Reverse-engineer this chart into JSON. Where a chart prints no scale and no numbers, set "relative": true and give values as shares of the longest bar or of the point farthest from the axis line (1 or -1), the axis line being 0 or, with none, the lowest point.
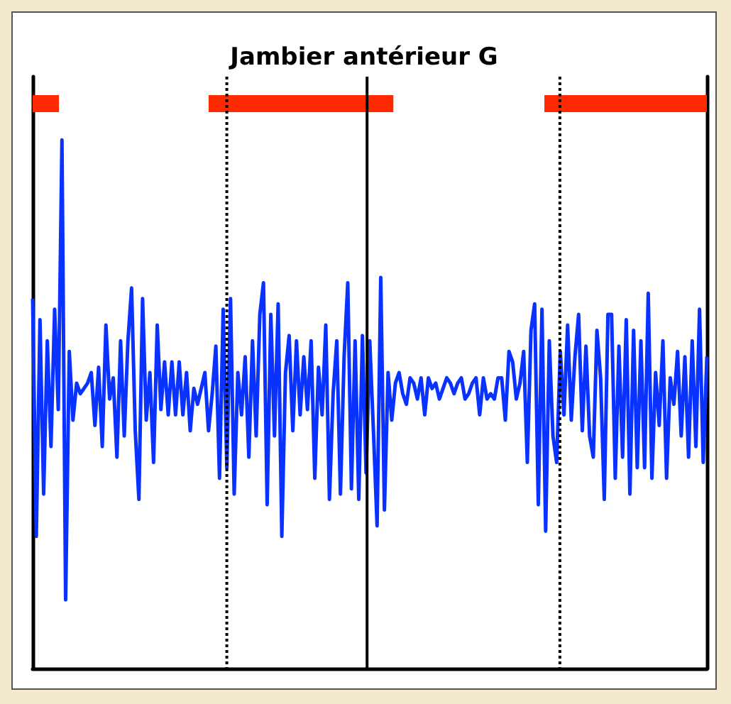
{
  "chart_data": {
    "type": "line",
    "title": "Jambier antérieur G",
    "relative": true,
    "color": "#0a32ff",
    "line_style": "solid",
    "grid": false,
    "categories": [
      null,
      null,
      null,
      null,
      null,
      null,
      null,
      null,
      null,
      null,
      null,
      null,
      null,
      null,
      null,
      null,
      null,
      null,
      null,
      null,
      null,
      null,
      null,
      null,
      null,
      null,
      null,
      null,
      null,
      null,
      null,
      null,
      null,
      null,
      null,
      null,
      null,
      null,
      null,
      null,
      null,
      null,
      null,
      null,
      null,
      null,
      null,
      null,
      null,
      null,
      null,
      null,
      null,
      null,
      null,
      null,
      null,
      null,
      null,
      null,
      null,
      null,
      null,
      null,
      null,
      null,
      null,
      null,
      null,
      null,
      null,
      null,
      null,
      null,
      null,
      null,
      null,
      null,
      null,
      null,
      null,
      null,
      null,
      null,
      null,
      null,
      null,
      null,
      null,
      null,
      null,
      null,
      null,
      null,
      null,
      null,
      null,
      null,
      null,
      null,
      null,
      null,
      null,
      null,
      null,
      null,
      null,
      null,
      null,
      null,
      null,
      null,
      null,
      null,
      null,
      null,
      null,
      null,
      null,
      null,
      null,
      null,
      null,
      null,
      null,
      null,
      null,
      null,
      null,
      null,
      null,
      null,
      null,
      null,
      null,
      null,
      null,
      null,
      null,
      null,
      null,
      null,
      null,
      null,
      null,
      null,
      null,
      null,
      null,
      null,
      null,
      null,
      null,
      null,
      null,
      null,
      null,
      null,
      null,
      null,
      null,
      null,
      null,
      null,
      null,
      null,
      null,
      null,
      null,
      null,
      null,
      null,
      null,
      null,
      null,
      null,
      null,
      null,
      null,
      null,
      null,
      null,
      null,
      null,
      null
    ],
    "values": [
      0.7,
      0.25,
      0.66,
      0.33,
      0.62,
      0.42,
      0.68,
      0.49,
      1,
      0.13,
      0.6,
      0.47,
      0.54,
      0.52,
      0.53,
      0.54,
      0.56,
      0.46,
      0.57,
      0.42,
      0.65,
      0.51,
      0.55,
      0.4,
      0.62,
      0.44,
      0.62,
      0.72,
      0.45,
      0.32,
      0.7,
      0.47,
      0.56,
      0.39,
      0.65,
      0.49,
      0.58,
      0.48,
      0.58,
      0.48,
      0.58,
      0.48,
      0.56,
      0.45,
      0.53,
      0.5,
      0.53,
      0.56,
      0.45,
      0.52,
      0.61,
      0.36,
      0.68,
      0.38,
      0.7,
      0.33,
      0.56,
      0.48,
      0.59,
      0.4,
      0.62,
      0.44,
      0.67,
      0.73,
      0.31,
      0.67,
      0.44,
      0.69,
      0.25,
      0.56,
      0.63,
      0.45,
      0.62,
      0.48,
      0.59,
      0.49,
      0.62,
      0.36,
      0.57,
      0.48,
      0.65,
      0.32,
      0.52,
      0.62,
      0.33,
      0.59,
      0.73,
      0.34,
      0.62,
      0.32,
      0.63,
      0.37,
      0.62,
      0.45,
      0.27,
      0.74,
      0.3,
      0.56,
      0.47,
      0.54,
      0.56,
      0.52,
      0.5,
      0.55,
      0.54,
      0.51,
      0.55,
      0.48,
      0.55,
      0.53,
      0.54,
      0.51,
      0.53,
      0.55,
      0.54,
      0.52,
      0.54,
      0.55,
      0.51,
      0.52,
      0.54,
      0.55,
      0.48,
      0.55,
      0.51,
      0.52,
      0.51,
      0.55,
      0.55,
      0.47,
      0.6,
      0.58,
      0.51,
      0.54,
      0.6,
      0.39,
      0.64,
      0.69,
      0.31,
      0.68,
      0.26,
      0.62,
      0.44,
      0.39,
      0.6,
      0.48,
      0.65,
      0.47,
      0.59,
      0.67,
      0.45,
      0.61,
      0.44,
      0.4,
      0.64,
      0.55,
      0.32,
      0.67,
      0.67,
      0.36,
      0.61,
      0.4,
      0.66,
      0.33,
      0.64,
      0.38,
      0.62,
      0.38,
      0.71,
      0.36,
      0.56,
      0.46,
      0.62,
      0.36,
      0.55,
      0.5,
      0.6,
      0.44,
      0.59,
      0.4,
      0.62,
      0.42,
      0.68,
      0.39,
      0.59
    ]
  }
}
